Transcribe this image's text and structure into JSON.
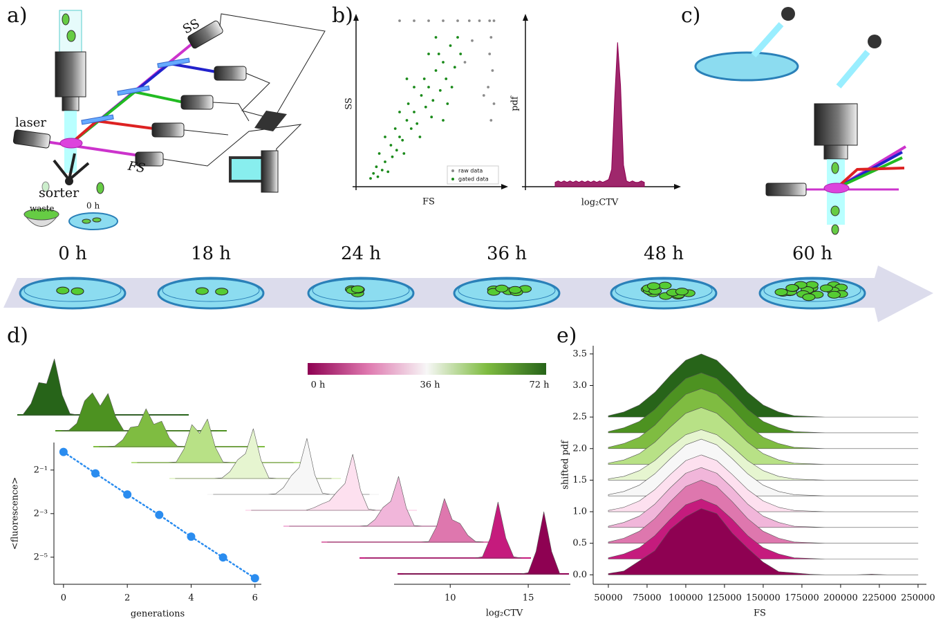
{
  "panel_labels": [
    "a)",
    "b)",
    "c)",
    "d)",
    "e)"
  ],
  "diagram": {
    "ss": "SS",
    "laser": "laser",
    "fs": "FS",
    "sorter": "sorter",
    "waste": "waste",
    "dish": "0 h"
  },
  "timeline": {
    "labels": [
      "0 h",
      "18 h",
      "24 h",
      "36 h",
      "48 h",
      "60 h"
    ]
  },
  "colorbar": {
    "colors": [
      "#8e0152",
      "#de77ae",
      "#f7f7f7",
      "#7fbc41",
      "#276419"
    ],
    "labels": [
      "0 h",
      "36 h",
      "72 h"
    ]
  },
  "chart_data": [
    {
      "type": "scatter",
      "xlabel": "FS",
      "ylabel": "SS",
      "xlim": [
        0,
        100
      ],
      "ylim": [
        0,
        100
      ],
      "legend": "lower right",
      "series": [
        {
          "name": "raw data",
          "color": "#8c8c8c",
          "x": [
            30,
            40,
            50,
            60,
            70,
            78,
            85,
            92,
            95,
            93,
            92,
            94,
            91,
            95,
            80,
            75,
            88,
            93
          ],
          "values": [
            100,
            100,
            100,
            100,
            100,
            100,
            100,
            100,
            100,
            90,
            80,
            70,
            60,
            50,
            88,
            75,
            55,
            40
          ]
        },
        {
          "name": "gated data",
          "color": "#1a8a1a",
          "x": [
            10,
            12,
            15,
            14,
            18,
            20,
            22,
            16,
            25,
            24,
            28,
            30,
            27,
            32,
            35,
            33,
            38,
            40,
            36,
            42,
            45,
            44,
            48,
            50,
            47,
            52,
            55,
            53,
            58,
            60,
            57,
            62,
            65,
            63,
            68,
            70,
            66,
            40,
            30,
            50,
            20,
            60,
            72,
            55,
            35
          ],
          "values": [
            5,
            8,
            6,
            12,
            10,
            15,
            9,
            20,
            18,
            25,
            22,
            30,
            35,
            28,
            40,
            20,
            35,
            45,
            50,
            38,
            55,
            30,
            48,
            60,
            65,
            42,
            70,
            52,
            58,
            75,
            80,
            65,
            85,
            50,
            72,
            90,
            60,
            60,
            45,
            80,
            30,
            40,
            80,
            90,
            65
          ]
        }
      ]
    },
    {
      "type": "area",
      "xlabel": "log₂CTV",
      "ylabel": "pdf",
      "xlim": [
        0,
        100
      ],
      "ylim": [
        0,
        1.15
      ],
      "color": "#8e0152",
      "x": [
        20,
        22,
        24,
        26,
        28,
        30,
        32,
        34,
        36,
        38,
        40,
        42,
        44,
        46,
        48,
        50,
        52,
        54,
        56,
        58,
        60,
        62,
        64,
        66,
        68,
        70,
        72,
        74,
        76,
        78,
        80
      ],
      "values": [
        0.03,
        0.04,
        0.03,
        0.04,
        0.03,
        0.04,
        0.03,
        0.04,
        0.03,
        0.04,
        0.03,
        0.04,
        0.03,
        0.04,
        0.03,
        0.04,
        0.03,
        0.04,
        0.05,
        0.12,
        0.6,
        1.0,
        0.7,
        0.15,
        0.04,
        0.03,
        0.04,
        0.03,
        0.03,
        0.04,
        0.03
      ]
    },
    {
      "type": "line",
      "xlabel": "generations",
      "ylabel": "<fluorescence>",
      "log_y": true,
      "color": "#2a8cef",
      "xlim": [
        -0.3,
        6.2
      ],
      "ylim": [
        0.0132,
        1.2
      ],
      "xticks": [
        0,
        2,
        4,
        6
      ],
      "yticks": [
        {
          "value": 0.5,
          "label": "2⁻¹"
        },
        {
          "value": 0.125,
          "label": "2⁻³"
        },
        {
          "value": 0.03125,
          "label": "2⁻⁵"
        }
      ],
      "x": [
        0,
        1,
        2,
        3,
        4,
        5,
        6
      ],
      "values": [
        0.89,
        0.45,
        0.23,
        0.12,
        0.06,
        0.031,
        0.016
      ]
    },
    {
      "type": "ridgeline",
      "xlabel": "log₂CTV",
      "xlim": [
        6.4,
        17.7
      ],
      "xticks": [
        10,
        15
      ],
      "x": [
        7,
        7.5,
        8,
        8.5,
        9,
        9.5,
        10,
        10.5,
        11,
        11.5,
        12,
        12.5,
        13,
        13.5,
        14,
        14.5,
        15,
        15.5,
        16,
        16.5,
        17
      ],
      "series": [
        {
          "color": "#8e0152",
          "values": [
            0,
            0,
            0,
            0,
            0,
            0,
            0,
            0,
            0,
            0,
            0,
            0,
            0,
            0,
            0,
            0,
            0.02,
            0.36,
            1.0,
            0.36,
            0.02
          ]
        },
        {
          "color": "#c51b7d",
          "values": [
            0,
            0,
            0,
            0,
            0,
            0,
            0,
            0,
            0,
            0,
            0,
            0,
            0,
            0,
            0,
            0.02,
            0.32,
            0.9,
            0.32,
            0.02,
            0
          ]
        },
        {
          "color": "#de77ae",
          "values": [
            0,
            0,
            0,
            0,
            0,
            0,
            0,
            0,
            0,
            0,
            0,
            0,
            0,
            0.01,
            0.25,
            0.7,
            0.36,
            0.3,
            0.11,
            0.01,
            0
          ]
        },
        {
          "color": "#f1b6da",
          "values": [
            0,
            0,
            0,
            0,
            0,
            0,
            0,
            0,
            0,
            0,
            0.01,
            0.11,
            0.3,
            0.4,
            0.8,
            0.29,
            0.01,
            0,
            0,
            0,
            0
          ]
        },
        {
          "color": "#fde0ef",
          "values": [
            0,
            0,
            0,
            0,
            0,
            0,
            0,
            0,
            0.04,
            0.1,
            0.15,
            0.3,
            0.43,
            0.9,
            0.32,
            0.02,
            0,
            0,
            0,
            0,
            0
          ]
        },
        {
          "color": "#f7f7f7",
          "values": [
            0,
            0,
            0,
            0,
            0,
            0,
            0,
            0,
            0.01,
            0.11,
            0.3,
            0.43,
            0.9,
            0.32,
            0.02,
            0,
            0,
            0,
            0,
            0,
            0
          ]
        },
        {
          "color": "#e6f5d0",
          "values": [
            0,
            0,
            0,
            0,
            0,
            0,
            0.01,
            0.11,
            0.3,
            0.4,
            0.8,
            0.29,
            0.01,
            0,
            0,
            0,
            0,
            0,
            0,
            0,
            0
          ]
        },
        {
          "color": "#b8e186",
          "values": [
            0,
            0,
            0,
            0,
            0,
            0.01,
            0.22,
            0.61,
            0.47,
            0.7,
            0.25,
            0.01,
            0,
            0,
            0,
            0,
            0,
            0,
            0,
            0,
            0
          ]
        },
        {
          "color": "#7fbc41",
          "values": [
            0,
            0,
            0.01,
            0.11,
            0.31,
            0.33,
            0.61,
            0.36,
            0.41,
            0.14,
            0.01,
            0,
            0,
            0,
            0,
            0,
            0,
            0,
            0,
            0,
            0
          ]
        },
        {
          "color": "#4d9221",
          "values": [
            0,
            0.01,
            0.12,
            0.48,
            0.61,
            0.4,
            0.6,
            0.22,
            0.01,
            0,
            0,
            0,
            0,
            0,
            0,
            0,
            0,
            0,
            0,
            0,
            0
          ]
        },
        {
          "color": "#276419",
          "values": [
            0.01,
            0.18,
            0.52,
            0.5,
            0.9,
            0.32,
            0.02,
            0,
            0,
            0,
            0,
            0,
            0,
            0,
            0,
            0,
            0,
            0,
            0,
            0,
            0
          ]
        }
      ]
    },
    {
      "type": "ridgeline",
      "xlabel": "FS",
      "ylabel": "shifted pdf",
      "xlim": [
        40200,
        255400
      ],
      "ylim": [
        -0.15,
        3.63
      ],
      "xticks": [
        50000,
        75000,
        100000,
        125000,
        150000,
        175000,
        200000,
        225000,
        250000
      ],
      "yticks": [
        {
          "value": 0,
          "label": "0.0"
        },
        0.5,
        {
          "value": 1,
          "label": "1.0"
        },
        1.5,
        {
          "value": 2,
          "label": "2.0"
        },
        2.5,
        {
          "value": 3,
          "label": "3.0"
        },
        3.5
      ],
      "x": [
        50000,
        60000,
        70000,
        80000,
        90000,
        100000,
        110000,
        120000,
        130000,
        140000,
        150000,
        160000,
        170000,
        180000,
        190000,
        200000,
        210000,
        220000,
        230000,
        240000,
        250000
      ],
      "series": [
        {
          "color": "#8e0152",
          "values": [
            0.02,
            0.06,
            0.22,
            0.38,
            0.72,
            0.92,
            1.05,
            0.97,
            0.66,
            0.42,
            0.2,
            0.05,
            0.03,
            0.01,
            0,
            0,
            0,
            0.01,
            0,
            0,
            0
          ]
        },
        {
          "color": "#c51b7d",
          "values": [
            0.27,
            0.33,
            0.43,
            0.62,
            0.88,
            1.11,
            1.2,
            1.1,
            0.88,
            0.62,
            0.43,
            0.33,
            0.27,
            0.26,
            0.25,
            0.25,
            0.25,
            0.25,
            0.25,
            0.25,
            0.25
          ]
        },
        {
          "color": "#de77ae",
          "values": [
            0.52,
            0.58,
            0.69,
            0.89,
            1.16,
            1.4,
            1.5,
            1.4,
            1.16,
            0.89,
            0.69,
            0.58,
            0.52,
            0.51,
            0.5,
            0.5,
            0.5,
            0.5,
            0.5,
            0.5,
            0.5
          ]
        },
        {
          "color": "#f1b6da",
          "values": [
            0.77,
            0.83,
            0.93,
            1.12,
            1.38,
            1.61,
            1.7,
            1.61,
            1.38,
            1.12,
            0.93,
            0.83,
            0.77,
            0.76,
            0.75,
            0.75,
            0.75,
            0.75,
            0.75,
            0.75,
            0.75
          ]
        },
        {
          "color": "#fde0ef",
          "values": [
            1.02,
            1.07,
            1.17,
            1.35,
            1.59,
            1.81,
            1.9,
            1.81,
            1.59,
            1.35,
            1.17,
            1.07,
            1.02,
            1.01,
            1.0,
            1.0,
            1.0,
            1.0,
            1.0,
            1.0,
            1.0
          ]
        },
        {
          "color": "#f7f7f7",
          "values": [
            1.27,
            1.32,
            1.42,
            1.6,
            1.84,
            2.06,
            2.15,
            2.06,
            1.84,
            1.6,
            1.42,
            1.32,
            1.27,
            1.26,
            1.25,
            1.25,
            1.25,
            1.25,
            1.25,
            1.25,
            1.25
          ]
        },
        {
          "color": "#e6f5d0",
          "values": [
            1.52,
            1.56,
            1.65,
            1.81,
            2.03,
            2.22,
            2.3,
            2.22,
            2.03,
            1.81,
            1.65,
            1.56,
            1.52,
            1.51,
            1.5,
            1.5,
            1.5,
            1.5,
            1.5,
            1.5,
            1.5
          ]
        },
        {
          "color": "#b8e186",
          "values": [
            1.77,
            1.82,
            1.92,
            2.1,
            2.34,
            2.56,
            2.65,
            2.56,
            2.34,
            2.1,
            1.92,
            1.82,
            1.77,
            1.76,
            1.75,
            1.75,
            1.75,
            1.75,
            1.75,
            1.75,
            1.75
          ]
        },
        {
          "color": "#7fbc41",
          "values": [
            2.02,
            2.08,
            2.18,
            2.37,
            2.63,
            2.86,
            2.95,
            2.86,
            2.63,
            2.37,
            2.18,
            2.08,
            2.02,
            2.01,
            2.0,
            2.0,
            2.0,
            2.0,
            2.0,
            2.0,
            2.0
          ]
        },
        {
          "color": "#4d9221",
          "values": [
            2.27,
            2.33,
            2.43,
            2.62,
            2.88,
            3.11,
            3.2,
            3.11,
            2.88,
            2.62,
            2.43,
            2.33,
            2.27,
            2.26,
            2.25,
            2.25,
            2.25,
            2.25,
            2.25,
            2.25,
            2.25
          ]
        },
        {
          "color": "#276419",
          "values": [
            2.52,
            2.58,
            2.69,
            2.89,
            3.16,
            3.4,
            3.5,
            3.4,
            3.16,
            2.89,
            2.69,
            2.58,
            2.52,
            2.51,
            2.5,
            2.5,
            2.5,
            2.5,
            2.5,
            2.5,
            2.5
          ]
        }
      ]
    }
  ]
}
